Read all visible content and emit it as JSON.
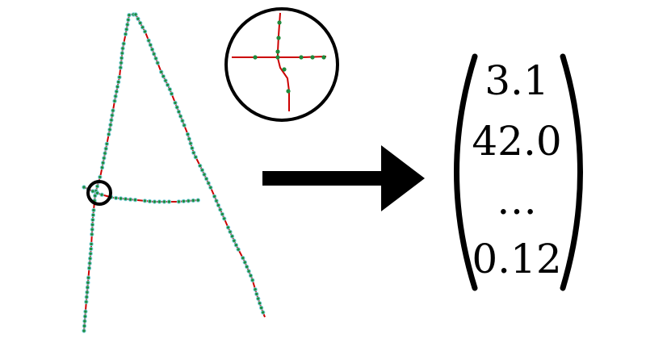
{
  "colors": {
    "stroke": "#cc0000",
    "dots": "#1e8a3c",
    "dot_outline": "#7fd3e0",
    "ink": "#000000",
    "background": "#ffffff"
  },
  "vector": {
    "entries": [
      "3.1",
      "42.0",
      "…",
      "0.12"
    ]
  }
}
